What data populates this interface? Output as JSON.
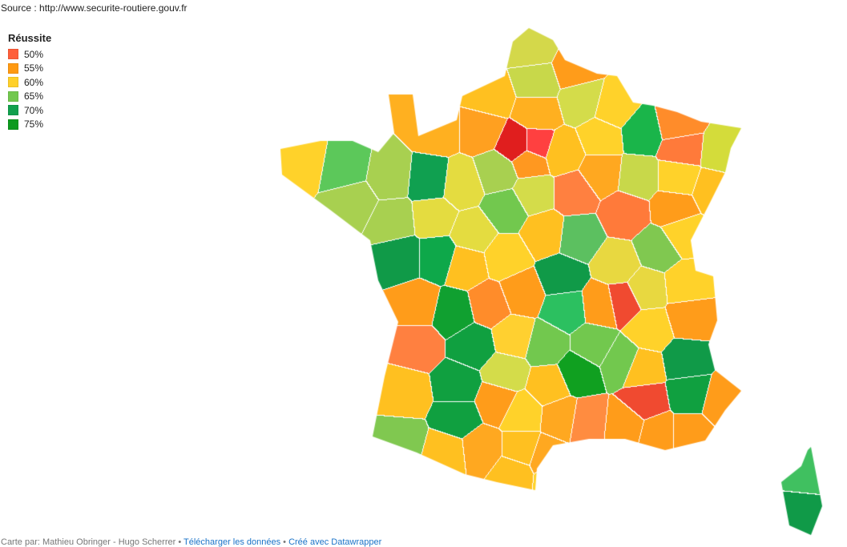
{
  "source": "Source : http://www.securite-routiere.gouv.fr",
  "legend": {
    "title": "Réussite",
    "items": [
      {
        "label": "50%",
        "color": "#ff5e3a"
      },
      {
        "label": "55%",
        "color": "#ff9a12"
      },
      {
        "label": "60%",
        "color": "#ffd02a"
      },
      {
        "label": "65%",
        "color": "#72c84e"
      },
      {
        "label": "70%",
        "color": "#12a04e"
      },
      {
        "label": "75%",
        "color": "#0c9a1e"
      }
    ]
  },
  "map": {
    "department_colors": [
      "#d4d84a",
      "#ff9c1a",
      "#c8d84a",
      "#ffc020",
      "#ffb020",
      "#d4dc4a",
      "#ffd22a",
      "#1ab54a",
      "#ff8c2a",
      "#ff7a3a",
      "#d4dc3a",
      "#ffb020",
      "#ffa020",
      "#e01e1e",
      "#ff4040",
      "#ff9820",
      "#ffc020",
      "#ffd22a",
      "#ffa820",
      "#c8d84a",
      "#ffd22a",
      "#ffc020",
      "#5cc85a",
      "#ffd22a",
      "#a8d050",
      "#10a050",
      "#e4dc40",
      "#a8d050",
      "#d4dc4a",
      "#ff8040",
      "#ff7a3a",
      "#ff9c1a",
      "#a8d050",
      "#a8d050",
      "#e4dc40",
      "#e4dc40",
      "#72c84e",
      "#ffc020",
      "#5cc060",
      "#e8d840",
      "#80c850",
      "#ffd22a",
      "#109a48",
      "#0ea84a",
      "#ffc020",
      "#ffd22a",
      "#109a48",
      "#ffd22a",
      "#ff9c1a",
      "#ff9c1a",
      "#10a030",
      "#ff8c2a",
      "#ff9c1a",
      "#2cc060",
      "#ff9c1a",
      "#f04a30",
      "#e8d840",
      "#ffd22a",
      "#ffd030",
      "#10a040",
      "#72c84e",
      "#72c84e",
      "#72c84e",
      "#10a020",
      "#ff8040",
      "#10a040",
      "#d4dc4a",
      "#ffc020",
      "#ffc020",
      "#109a48",
      "#10a040",
      "#ff9c1a",
      "#f04a30",
      "#ffc020",
      "#10a040",
      "#ff9c1a",
      "#ffd22a",
      "#ffa820",
      "#ff8c40",
      "#ff9c1a",
      "#ff9c1a",
      "#ff9c1a",
      "#80c850",
      "#ffc020",
      "#ffa820",
      "#ffc020",
      "#ffa820",
      "#ffc020",
      "#ffd22a",
      "#40c060",
      "#109a48"
    ]
  },
  "footer": {
    "credits": "Carte par: Mathieu Obringer - Hugo Scherrer",
    "sep": " • ",
    "download_link": "Télécharger les données",
    "made_with_link": "Créé avec Datawrapper"
  }
}
